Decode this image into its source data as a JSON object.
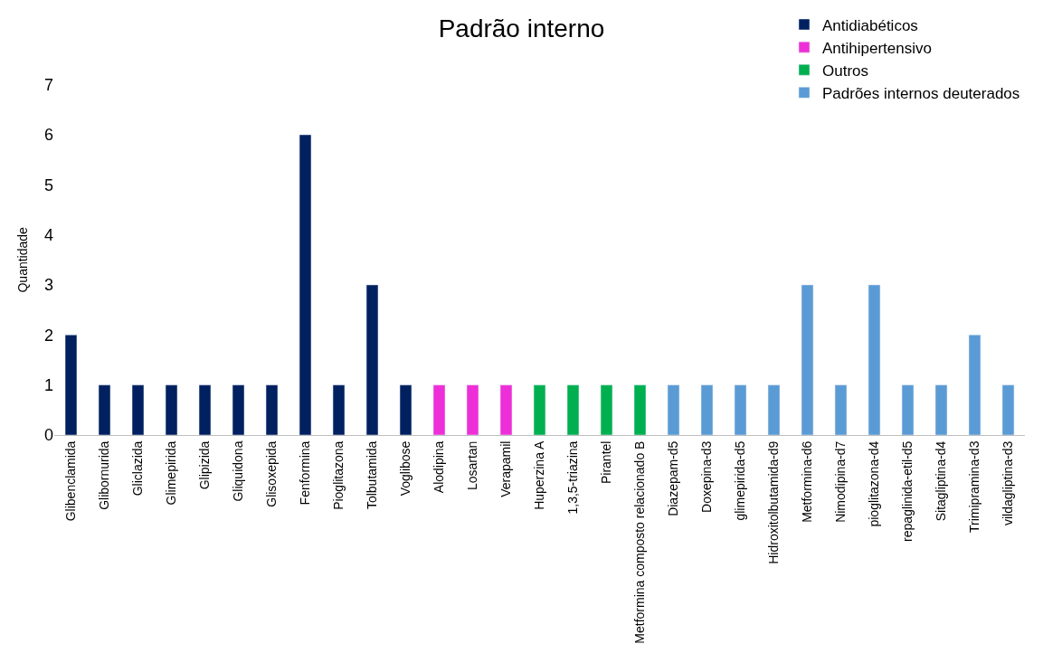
{
  "chart_data": {
    "type": "bar",
    "title": "Padrão interno",
    "ylabel": "Quantidade",
    "categories": [
      "Glibenclamida",
      "Glibornurida",
      "Gliclazida",
      "Glimepirida",
      "Glipizida",
      "Gliquidona",
      "Glisoxepida",
      "Fenformina",
      "Pioglitazona",
      "Tolbutamida",
      "Voglibose",
      "Alodipina",
      "Losartan",
      "Verapamil",
      "Huperzina A",
      "1,3,5-triazina",
      "Pirantel",
      "Metformina composto relacionado B",
      "Diazepam-d5",
      "Doxepina-d3",
      "glimepirida-d5",
      "Hidroxitolbutamida-d9",
      "Metformina-d6",
      "Nimodipina-d7",
      "pioglitazona-d4",
      "repaglinida-etil-d5",
      "Sitagliptina-d4",
      "Trimipramina-d3",
      "vildagliptina-d3"
    ],
    "series": [
      {
        "name": "Antidiabéticos",
        "color": "#002060",
        "values": [
          2,
          1,
          1,
          1,
          1,
          1,
          1,
          6,
          1,
          3,
          1,
          null,
          null,
          null,
          null,
          null,
          null,
          null,
          null,
          null,
          null,
          null,
          null,
          null,
          null,
          null,
          null,
          null,
          null
        ]
      },
      {
        "name": "Antihipertensivo",
        "color": "#ee2fd8",
        "values": [
          null,
          null,
          null,
          null,
          null,
          null,
          null,
          null,
          null,
          null,
          null,
          1,
          1,
          1,
          null,
          null,
          null,
          null,
          null,
          null,
          null,
          null,
          null,
          null,
          null,
          null,
          null,
          null,
          null
        ]
      },
      {
        "name": "Outros",
        "color": "#00b050",
        "values": [
          null,
          null,
          null,
          null,
          null,
          null,
          null,
          null,
          null,
          null,
          null,
          null,
          null,
          null,
          1,
          1,
          1,
          1,
          null,
          null,
          null,
          null,
          null,
          null,
          null,
          null,
          null,
          null,
          null
        ]
      },
      {
        "name": "Padrões internos deuterados",
        "color": "#5b9bd5",
        "values": [
          null,
          null,
          null,
          null,
          null,
          null,
          null,
          null,
          null,
          null,
          null,
          null,
          null,
          null,
          null,
          null,
          null,
          null,
          1,
          1,
          1,
          1,
          3,
          1,
          3,
          1,
          1,
          2,
          1
        ]
      }
    ],
    "ylim": [
      0,
      7
    ],
    "yticks": [
      0,
      1,
      2,
      3,
      4,
      5,
      6,
      7
    ],
    "legend": "top right"
  }
}
